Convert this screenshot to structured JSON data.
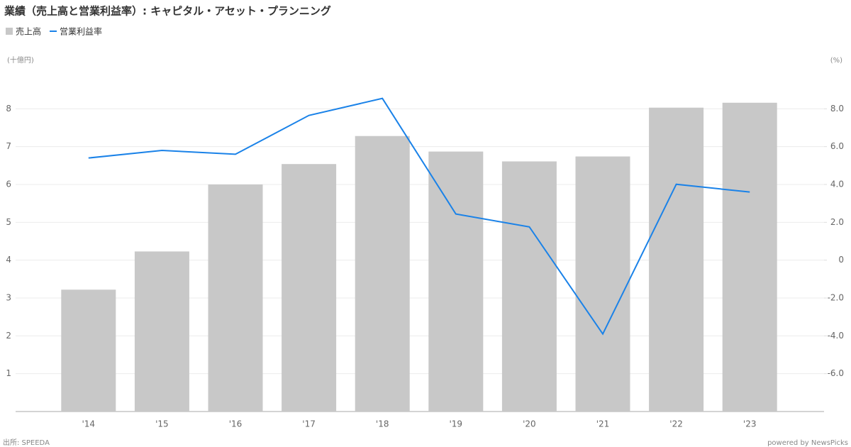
{
  "chart_data": {
    "type": "bar-line",
    "title": "業績（売上高と営業利益率）: キャピタル・アセット・プランニング",
    "y_label": "(十億円)",
    "y2_label": "(%)",
    "source": "出所: SPEEDA",
    "credit": "powered by NewsPicks",
    "categories": [
      "'14",
      "'15",
      "'16",
      "'17",
      "'18",
      "'19",
      "'20",
      "'21",
      "'22",
      "'23"
    ],
    "series": [
      {
        "name": "売上高",
        "type": "bar",
        "color": "#c8c8c8",
        "values": [
          3.22,
          4.23,
          6.0,
          6.54,
          7.28,
          6.87,
          6.61,
          6.74,
          8.03,
          8.16
        ]
      },
      {
        "name": "営業利益率",
        "type": "line",
        "axis": "y2",
        "color": "#1a82e8",
        "values": [
          5.4,
          5.8,
          5.6,
          7.65,
          8.55,
          2.44,
          1.76,
          -3.9,
          4.01,
          3.6
        ]
      }
    ],
    "ylim": [
      0,
      9
    ],
    "yticks": [
      1,
      2,
      3,
      4,
      5,
      6,
      7,
      8
    ],
    "y2lim": [
      -8,
      10
    ],
    "y2ticks": [
      {
        "value": -6,
        "label": "-6.0"
      },
      {
        "value": -4,
        "label": "-4.0"
      },
      {
        "value": -2,
        "label": "-2.0"
      },
      0,
      {
        "value": 2,
        "label": "2.0"
      },
      {
        "value": 4,
        "label": "4.0"
      },
      {
        "value": 6,
        "label": "6.0"
      },
      {
        "value": 8,
        "label": "8.0"
      }
    ],
    "grid": true
  }
}
